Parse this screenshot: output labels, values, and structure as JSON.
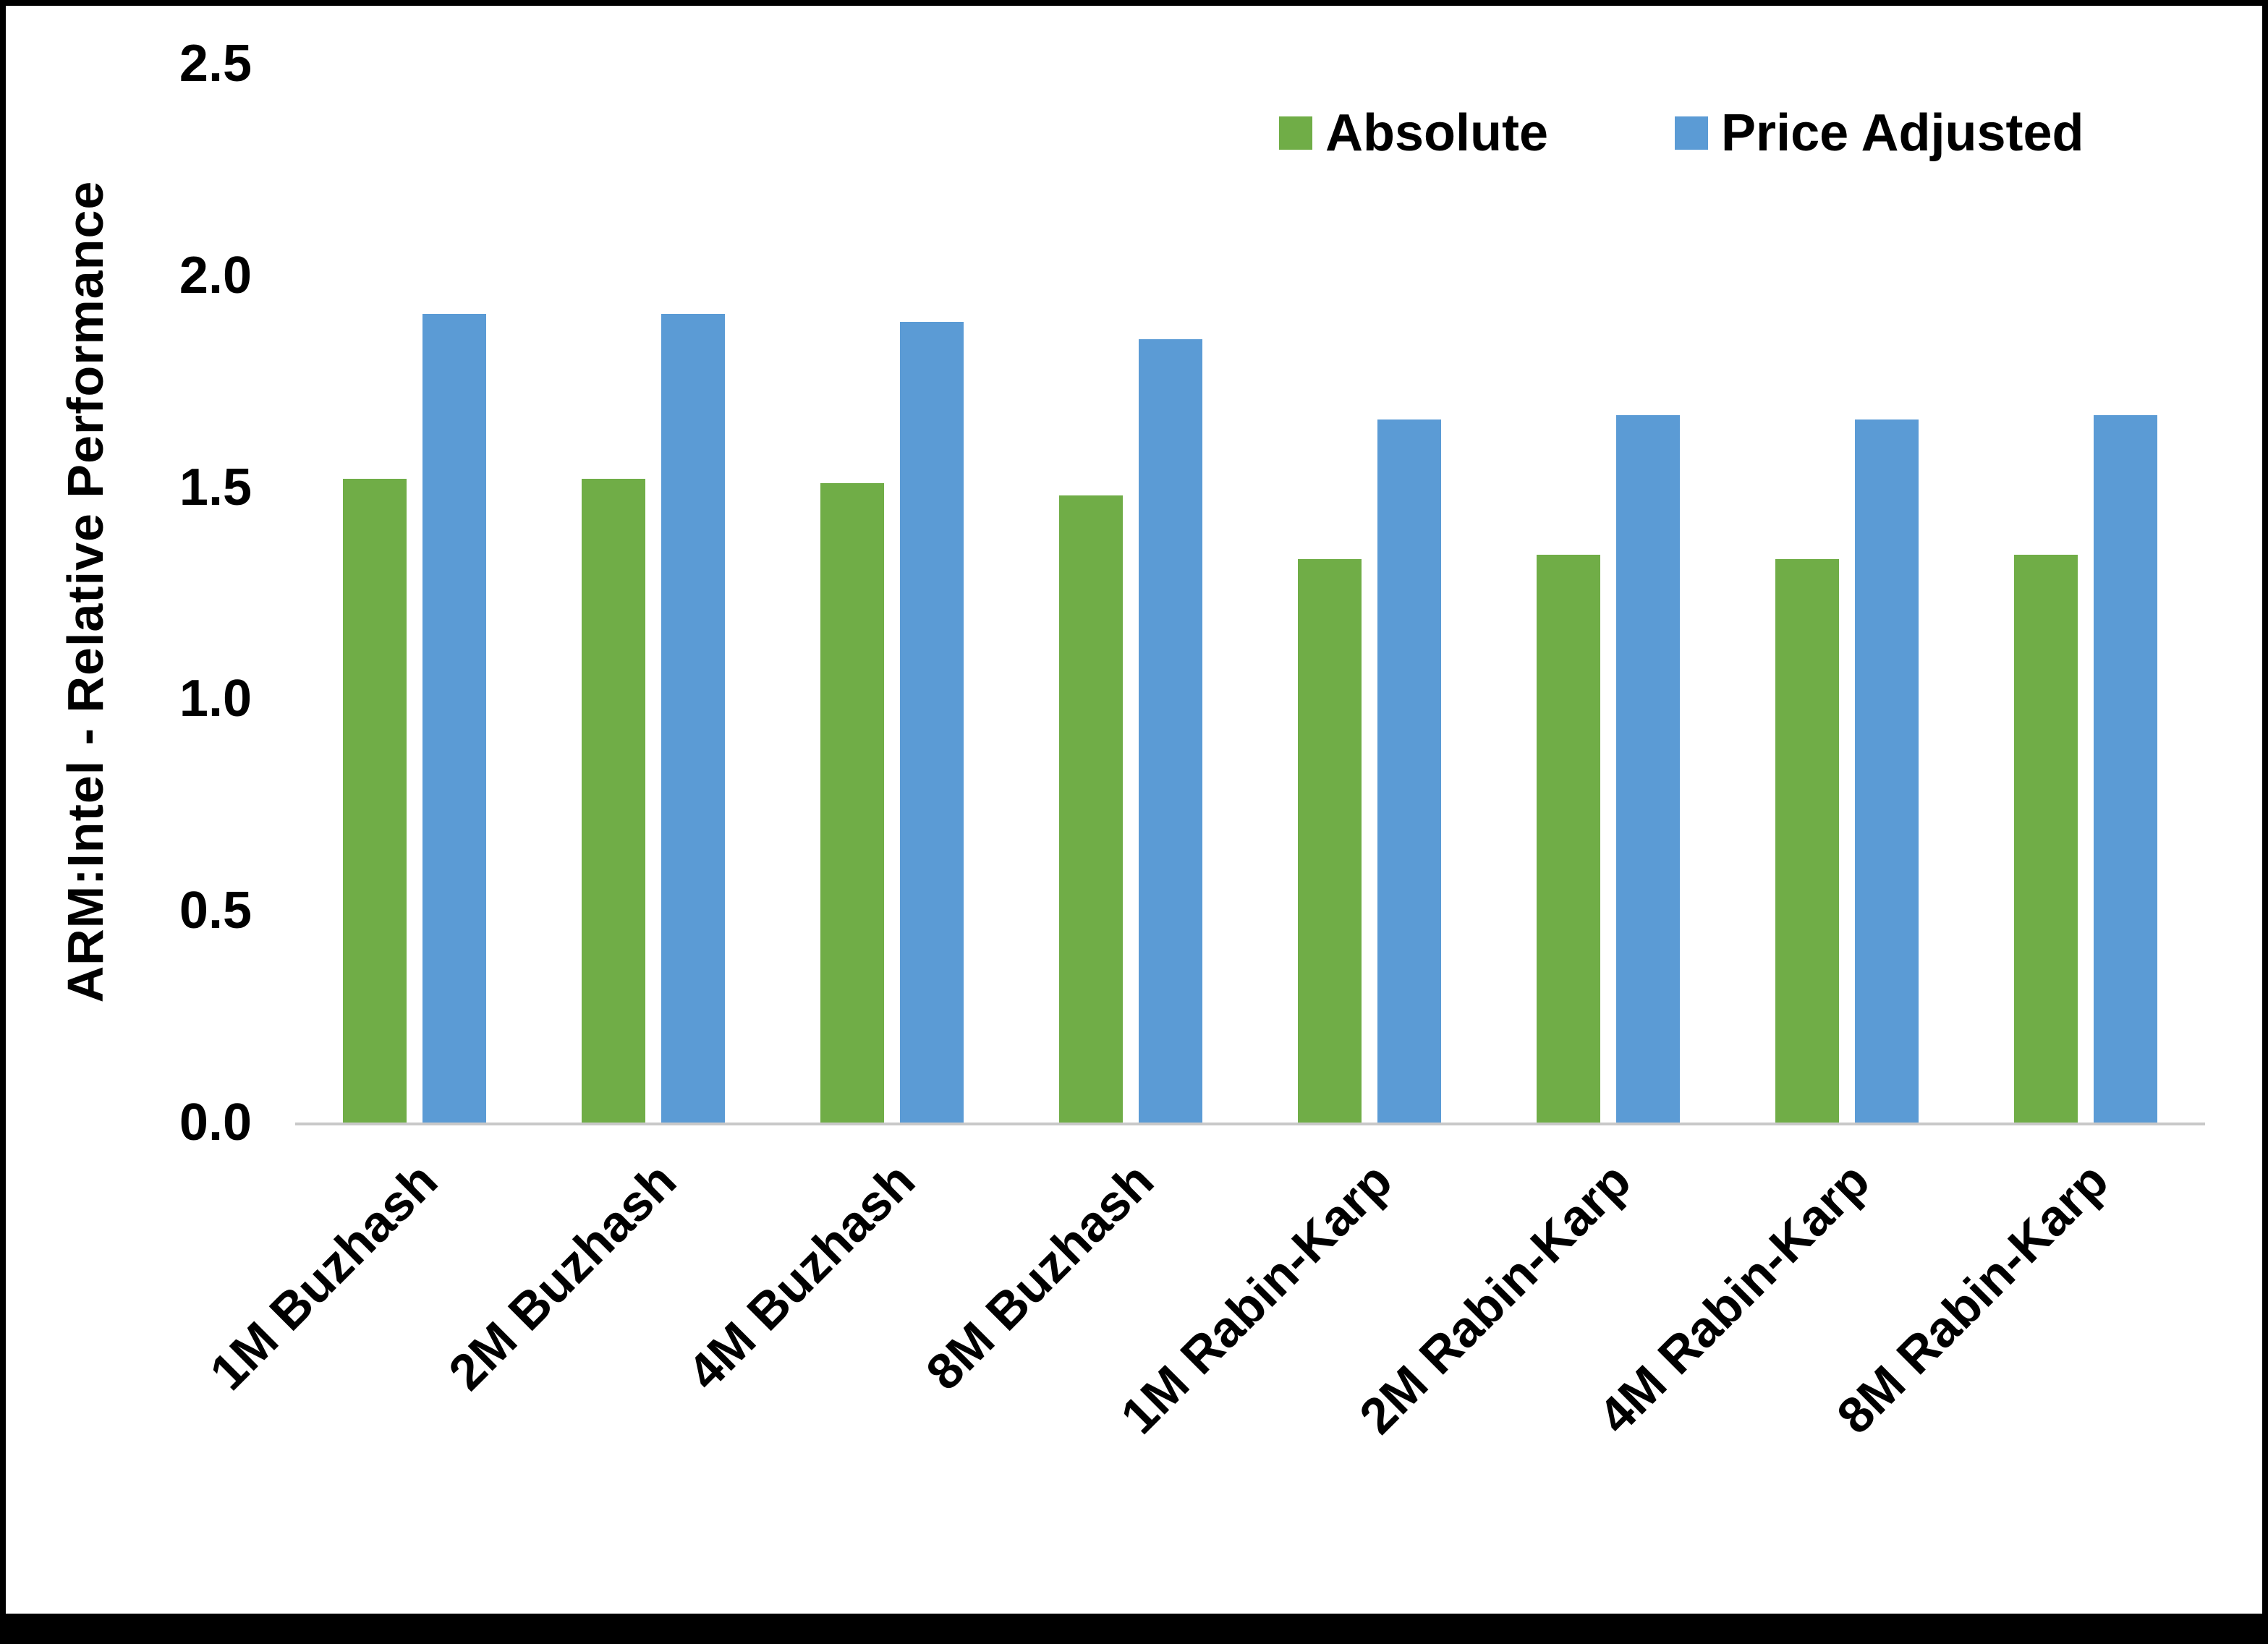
{
  "chart_data": {
    "type": "bar",
    "title": "",
    "xlabel": "",
    "ylabel": "ARM:Intel - Relative Performance",
    "ylim": [
      0.0,
      2.5
    ],
    "yticks": [
      0.0,
      0.5,
      1.0,
      1.5,
      2.0,
      2.5
    ],
    "grid": false,
    "legend_position": "top-right",
    "categories": [
      "1M Buzhash",
      "2M Buzhash",
      "4M Buzhash",
      "8M Buzhash",
      "1M Rabin-Karp",
      "2M Rabin-Karp",
      "4M Rabin-Karp",
      "8M Rabin-Karp"
    ],
    "series": [
      {
        "name": "Absolute",
        "color": "#70AD47",
        "values": [
          1.52,
          1.52,
          1.51,
          1.48,
          1.33,
          1.34,
          1.33,
          1.34
        ]
      },
      {
        "name": "Price Adjusted",
        "color": "#5B9BD5",
        "values": [
          1.91,
          1.91,
          1.89,
          1.85,
          1.66,
          1.67,
          1.66,
          1.67
        ]
      }
    ]
  }
}
